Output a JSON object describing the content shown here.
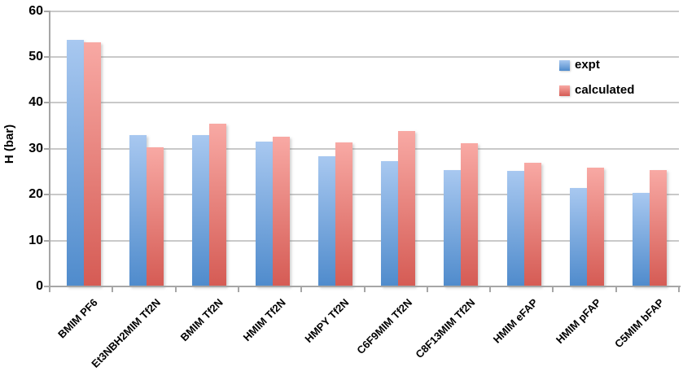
{
  "chart_data": {
    "type": "bar",
    "title": "",
    "xlabel": "",
    "ylabel": "H (bar)",
    "ylim": [
      0,
      60
    ],
    "yticks": [
      0,
      10,
      20,
      30,
      40,
      50,
      60
    ],
    "grid": true,
    "legend_position": "upper-right",
    "categories": [
      "BMIM PF6",
      "Et3NBH2MIM Tf2N",
      "BMIM Tf2N",
      "HMIM Tf2N",
      "HMPY Tf2N",
      "C6F9MIM Tf2N",
      "C8F13MIM Tf2N",
      "HMIM eFAP",
      "HMIM pFAP",
      "C5MIM bFAP"
    ],
    "series": [
      {
        "name": "expt",
        "color_top": "#a8c8f0",
        "color_bottom": "#4f8bcc",
        "values": [
          53.7,
          33.0,
          32.9,
          31.5,
          28.3,
          27.3,
          25.3,
          25.1,
          21.4,
          20.4
        ]
      },
      {
        "name": "calculated",
        "color_top": "#f8a9a4",
        "color_bottom": "#d55b54",
        "values": [
          53.2,
          30.4,
          35.4,
          32.7,
          31.4,
          33.8,
          31.2,
          27.0,
          25.8,
          25.3
        ]
      }
    ],
    "colors": {
      "gridline": "#c9c9c9",
      "axis": "#a6a6a6",
      "text": "#000000"
    }
  }
}
